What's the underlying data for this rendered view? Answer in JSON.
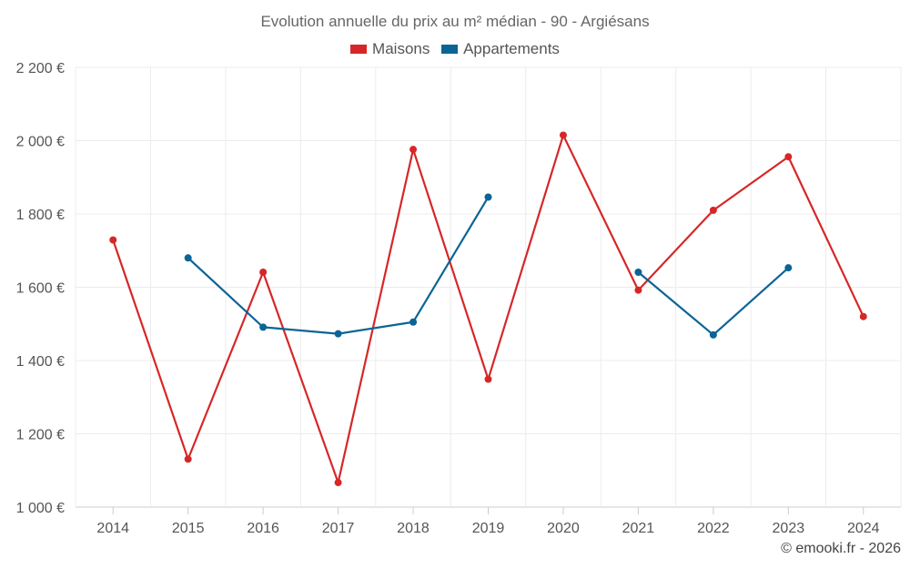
{
  "chart_data": {
    "type": "line",
    "title": "Evolution annuelle du prix au m² médian - 90 - Argiésans",
    "x": [
      "2014",
      "2015",
      "2016",
      "2017",
      "2018",
      "2019",
      "2020",
      "2021",
      "2022",
      "2023",
      "2024"
    ],
    "y_ticks": [
      "1 000 €",
      "1 200 €",
      "1 400 €",
      "1 600 €",
      "1 800 €",
      "2 000 €",
      "2 200 €"
    ],
    "ylim": [
      1000,
      2200
    ],
    "grid": true,
    "legend_position": "top-center",
    "series": [
      {
        "name": "Maisons",
        "color": "#d62728",
        "values": [
          1729,
          1131,
          1641,
          1067,
          1976,
          1349,
          2015,
          1592,
          1810,
          1956,
          1520
        ]
      },
      {
        "name": "Appartements",
        "color": "#0b6496",
        "values": [
          null,
          1680,
          1491,
          1473,
          1505,
          1846,
          null,
          1641,
          1470,
          1653,
          null
        ]
      }
    ]
  },
  "footer": {
    "credit": "© emooki.fr - 2026"
  }
}
